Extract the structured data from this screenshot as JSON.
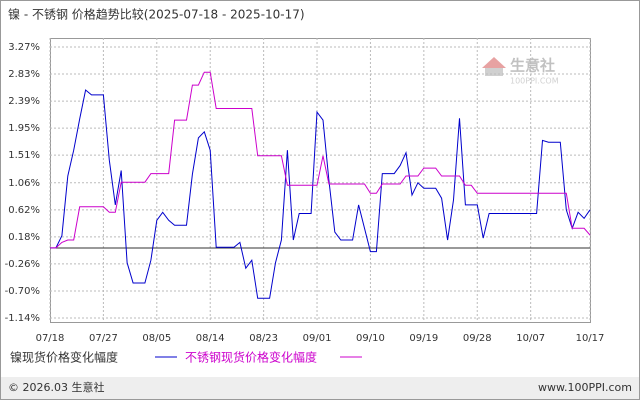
{
  "chart_data": {
    "type": "line",
    "title": "镍 - 不锈钢 价格趋势比较(2025-07-18 - 2025-10-17)",
    "categories": [
      "07/18",
      null,
      null,
      null,
      null,
      null,
      null,
      null,
      null,
      "07/27",
      null,
      null,
      null,
      null,
      null,
      null,
      null,
      null,
      "08/05",
      null,
      null,
      null,
      null,
      null,
      null,
      null,
      null,
      "08/14",
      null,
      null,
      null,
      null,
      null,
      null,
      null,
      null,
      "08/23",
      null,
      null,
      null,
      null,
      null,
      null,
      null,
      null,
      "09/01",
      null,
      null,
      null,
      null,
      null,
      null,
      null,
      null,
      "09/10",
      null,
      null,
      null,
      null,
      null,
      null,
      null,
      null,
      "09/19",
      null,
      null,
      null,
      null,
      null,
      null,
      null,
      null,
      "09/28",
      null,
      null,
      null,
      null,
      null,
      null,
      null,
      null,
      "10/07",
      null,
      null,
      null,
      null,
      null,
      null,
      null,
      null,
      null,
      "10/17"
    ],
    "series": [
      {
        "name": "镍现货价格变化幅度",
        "color": "#0000cc",
        "values": [
          0,
          0,
          0.2,
          1.17,
          1.59,
          2.1,
          2.57,
          2.49,
          2.49,
          2.49,
          1.43,
          0.7,
          1.26,
          -0.24,
          -0.57,
          -0.57,
          -0.57,
          -0.2,
          0.45,
          0.58,
          0.45,
          0.37,
          0.37,
          0.37,
          1.2,
          1.79,
          1.89,
          1.59,
          0.01,
          0.01,
          0.01,
          0.01,
          0.09,
          -0.33,
          -0.2,
          -0.82,
          -0.82,
          -0.82,
          -0.24,
          0.13,
          1.59,
          0.13,
          0.56,
          0.56,
          0.56,
          2.21,
          2.08,
          1.1,
          0.26,
          0.13,
          0.13,
          0.13,
          0.7,
          0.32,
          -0.06,
          -0.06,
          1.21,
          1.21,
          1.21,
          1.34,
          1.55,
          0.86,
          1.06,
          0.97,
          0.97,
          0.97,
          0.81,
          0.13,
          0.78,
          2.11,
          0.7,
          0.7,
          0.7,
          0.16,
          0.56,
          0.56,
          0.56,
          0.56,
          0.56,
          0.56,
          0.56,
          0.56,
          0.56,
          1.75,
          1.72,
          1.72,
          1.72,
          0.62,
          0.32,
          0.58,
          0.48,
          0.62
        ]
      },
      {
        "name": "不锈钢现货价格变化幅度",
        "color": "#cc00cc",
        "values": [
          0,
          0,
          0.09,
          0.13,
          0.13,
          0.67,
          0.67,
          0.67,
          0.67,
          0.67,
          0.58,
          0.58,
          1.07,
          1.07,
          1.07,
          1.07,
          1.07,
          1.21,
          1.21,
          1.21,
          1.21,
          2.08,
          2.08,
          2.08,
          2.65,
          2.65,
          2.86,
          2.86,
          2.27,
          2.27,
          2.27,
          2.27,
          2.27,
          2.27,
          2.27,
          1.5,
          1.5,
          1.5,
          1.5,
          1.5,
          1.02,
          1.02,
          1.02,
          1.02,
          1.02,
          1.02,
          1.5,
          1.04,
          1.04,
          1.04,
          1.04,
          1.04,
          1.04,
          1.04,
          0.89,
          0.89,
          1.04,
          1.04,
          1.04,
          1.04,
          1.17,
          1.17,
          1.17,
          1.3,
          1.3,
          1.3,
          1.17,
          1.17,
          1.17,
          1.17,
          1.02,
          1.02,
          0.89,
          0.89,
          0.89,
          0.89,
          0.89,
          0.89,
          0.89,
          0.89,
          0.89,
          0.89,
          0.89,
          0.89,
          0.89,
          0.89,
          0.89,
          0.89,
          0.32,
          0.32,
          0.32,
          0.21
        ]
      }
    ],
    "ylim": [
      -1.14,
      3.27
    ],
    "yticks": [
      {
        "value": 3.27,
        "label": "3.27%"
      },
      {
        "value": 2.83,
        "label": "2.83%"
      },
      {
        "value": 2.39,
        "label": "2.39%"
      },
      {
        "value": 1.95,
        "label": "1.95%"
      },
      {
        "value": 1.51,
        "label": "1.51%"
      },
      {
        "value": 1.06,
        "label": "1.06%"
      },
      {
        "value": 0.62,
        "label": "0.62%"
      },
      {
        "value": 0.18,
        "label": "0.18%"
      },
      {
        "value": -0.26,
        "label": "-0.26%"
      },
      {
        "value": -0.7,
        "label": "-0.70%"
      },
      {
        "value": -1.14,
        "label": "-1.14%"
      }
    ],
    "grid": true
  },
  "logo": {
    "name": "生意社",
    "url": "100PPI.COM"
  },
  "footer": {
    "copyright": "© 2026.03 生意社",
    "site": "www.100PPI.com"
  }
}
